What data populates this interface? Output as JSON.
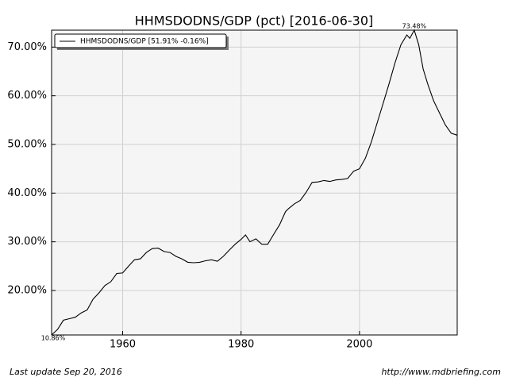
{
  "chart_data": {
    "type": "line",
    "title": "HHMSDODNS/GDP (pct) [2016-06-30]",
    "legend": "upper left",
    "grid": true,
    "background": "#f5f5f5",
    "series": [
      {
        "name": "HHMSDODNS/GDP [51.91% -0.16%]",
        "color": "#000000",
        "x": [
          1948,
          1949,
          1950,
          1951,
          1952,
          1953,
          1954,
          1955,
          1956,
          1957,
          1958,
          1959,
          1960,
          1961,
          1962,
          1963,
          1964,
          1965,
          1966,
          1967,
          1968,
          1969,
          1970,
          1971,
          1972,
          1973,
          1974,
          1975,
          1976,
          1977,
          1978,
          1979,
          1980,
          1980.75,
          1981.5,
          1982.5,
          1983.5,
          1984.5,
          1985.5,
          1986.5,
          1987.5,
          1988,
          1989,
          1990,
          1991,
          1992,
          1993,
          1994,
          1995,
          1996,
          1997,
          1998,
          1999,
          2000,
          2001,
          2002,
          2003,
          2004,
          2005,
          2006,
          2007,
          2008,
          2008.5,
          2009.25,
          2010,
          2010.75,
          2011.5,
          2012.5,
          2013.5,
          2014.5,
          2015.5,
          2016.5
        ],
        "values": [
          10.86,
          12.0,
          13.9,
          14.2,
          14.5,
          15.4,
          16.0,
          18.2,
          19.5,
          21.0,
          21.8,
          23.5,
          23.6,
          25.0,
          26.3,
          26.5,
          27.8,
          28.6,
          28.7,
          28.0,
          27.8,
          27.0,
          26.5,
          25.8,
          25.7,
          25.8,
          26.1,
          26.3,
          26.0,
          27.0,
          28.3,
          29.5,
          30.5,
          31.4,
          30.0,
          30.6,
          29.5,
          29.5,
          31.5,
          33.5,
          36.2,
          36.8,
          37.8,
          38.5,
          40.2,
          42.2,
          42.3,
          42.6,
          42.4,
          42.7,
          42.8,
          43.0,
          44.5,
          45.0,
          47.2,
          50.5,
          54.5,
          58.5,
          62.5,
          66.8,
          70.5,
          72.5,
          71.8,
          73.48,
          70.5,
          65.5,
          62.5,
          59.0,
          56.5,
          54.0,
          52.3,
          51.91
        ]
      }
    ],
    "max_label": "73.48%",
    "min_label": "10.86%",
    "xlim": [
      1948,
      2016.5
    ],
    "xticks": [
      1960,
      1980,
      2000
    ],
    "ylim": [
      10.86,
      73.48
    ],
    "yticks": [
      {
        "value": 20,
        "label": "20.00%"
      },
      {
        "value": 30,
        "label": "30.00%"
      },
      {
        "value": 40,
        "label": "40.00%"
      },
      {
        "value": 50,
        "label": "50.00%"
      },
      {
        "value": 60,
        "label": "60.00%"
      },
      {
        "value": 70,
        "label": "70.00%"
      }
    ],
    "footer_left": "Last update Sep 20, 2016",
    "footer_right": "http://www.mdbriefing.com"
  }
}
